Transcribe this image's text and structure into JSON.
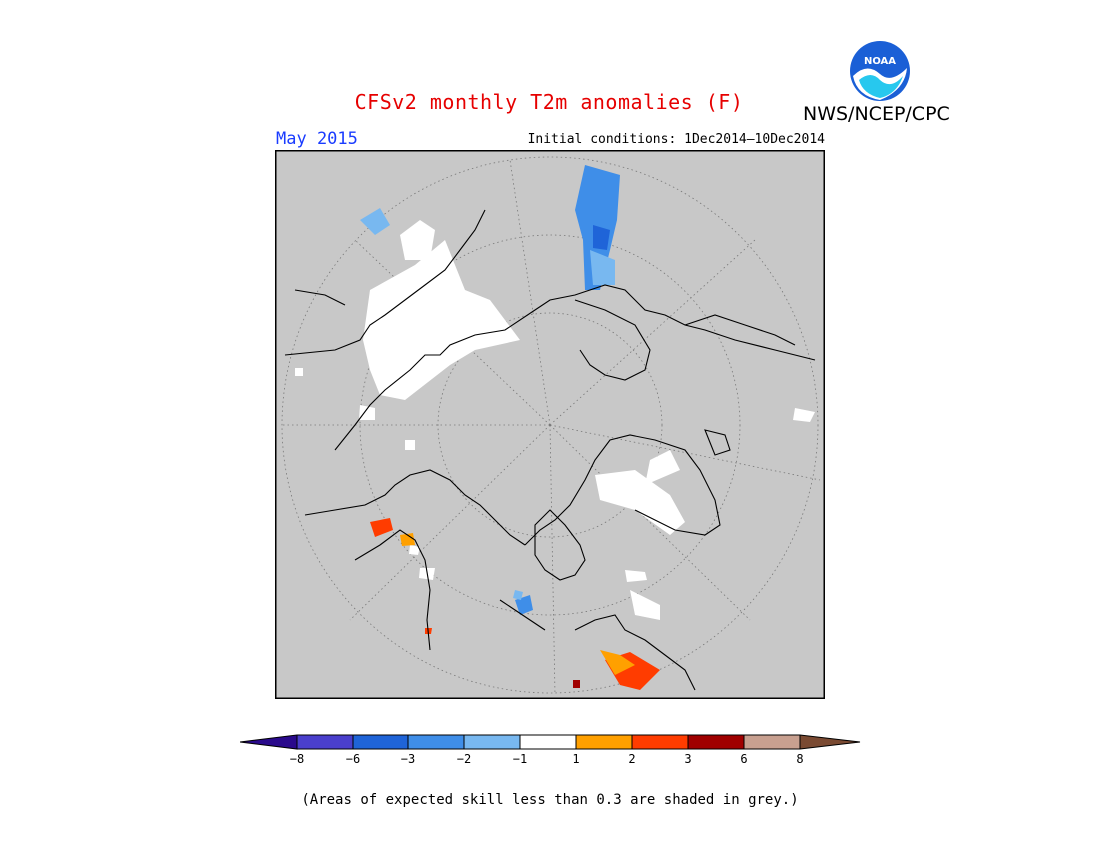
{
  "header": {
    "title": "CFSv2 monthly T2m anomalies (F)",
    "agency": "NWS/NCEP/CPC",
    "logo_text": "NOAA",
    "month": "May 2015",
    "initial_conditions": "Initial conditions: 1Dec2014–10Dec2014"
  },
  "map": {
    "projection": "polar-stereographic-north",
    "background_color": "#c8c8c8",
    "coastline_color": "#000000"
  },
  "legend": {
    "labels": [
      "−8",
      "−6",
      "−3",
      "−2",
      "−1",
      "1",
      "2",
      "3",
      "6",
      "8"
    ],
    "colors": [
      "#2a0a8c",
      "#4a3fcc",
      "#1f64d8",
      "#3f8ee8",
      "#78b8f0",
      "#ffffff",
      "#ffa000",
      "#ff3c00",
      "#a00000",
      "#c8a090",
      "#7a4a32"
    ]
  },
  "footnote": "(Areas of expected skill less than 0.3 are shaded in grey.)"
}
